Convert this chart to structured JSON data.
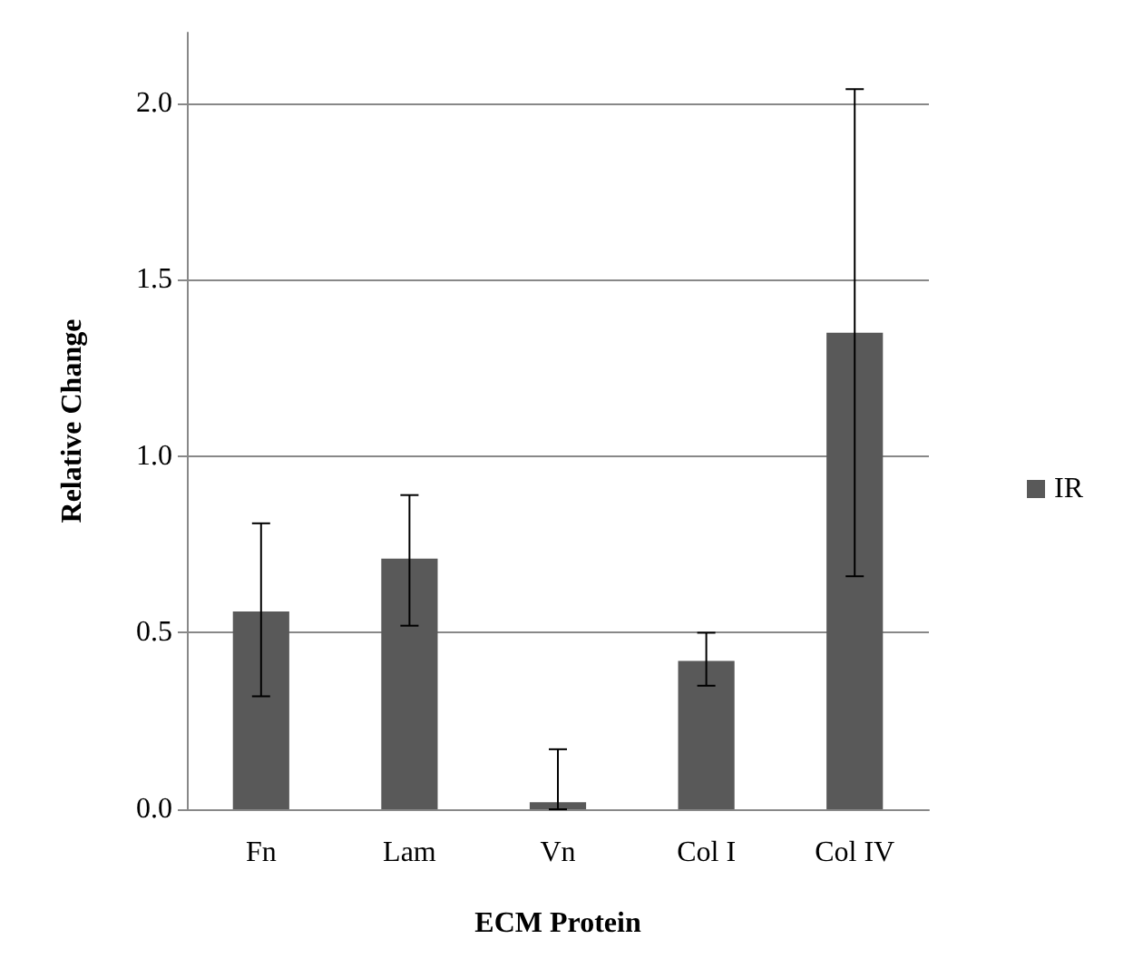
{
  "chart_data": {
    "type": "bar",
    "xlabel": "ECM Protein",
    "ylabel": "Relative Change",
    "categories": [
      "Fn",
      "Lam",
      "Vn",
      "Col I",
      "Col IV"
    ],
    "series": [
      {
        "name": "IR",
        "color": "#595959",
        "values": [
          0.56,
          0.71,
          0.02,
          0.42,
          1.35
        ],
        "errors": [
          [
            0.32,
            0.81
          ],
          [
            0.52,
            0.89
          ],
          [
            0,
            0.17
          ],
          [
            0.35,
            0.5
          ],
          [
            0.66,
            2.04
          ]
        ]
      }
    ],
    "ylim": [
      0,
      2.2
    ],
    "yticks": [
      {
        "value": 0,
        "label": "0.0"
      },
      {
        "value": 0.5,
        "label": "0.5"
      },
      {
        "value": 1,
        "label": "1.0"
      },
      {
        "value": 1.5,
        "label": "1.5"
      },
      {
        "value": 2,
        "label": "2.0"
      }
    ],
    "grid": "y",
    "legend": "right"
  }
}
